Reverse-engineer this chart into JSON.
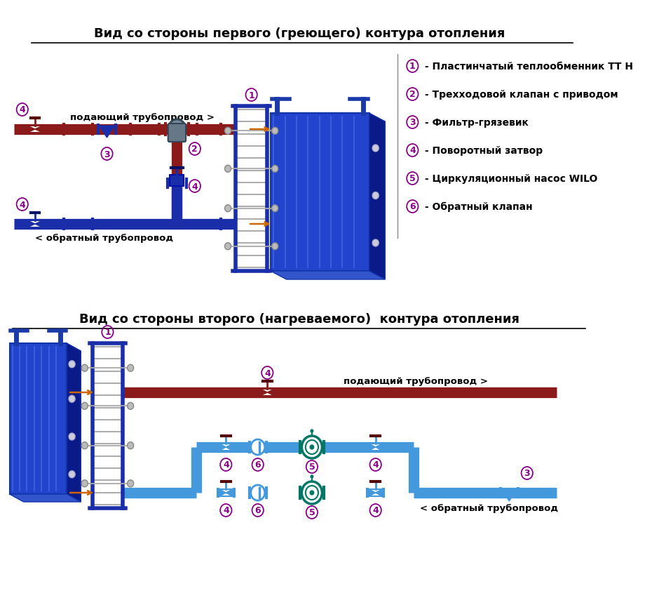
{
  "title1": "Вид со стороны первого (греющего) контура отопления",
  "title2": "Вид со стороны второго (нагреваемого)  контура отопления",
  "legend": [
    {
      "num": "1",
      "text": " - Пластинчатый теплообменник ТТ Н"
    },
    {
      "num": "2",
      "text": " - Трехходовой клапан с приводом"
    },
    {
      "num": "3",
      "text": " - Фильтр-грязевик"
    },
    {
      "num": "4",
      "text": " - Поворотный затвор"
    },
    {
      "num": "5",
      "text": " - Циркуляционный насос WILO"
    },
    {
      "num": "6",
      "text": " - Обратный клапан"
    }
  ],
  "label_supply1": "подающий трубопровод >",
  "label_return1": "< обратный трубопровод",
  "label_supply2": "подающий трубопровод >",
  "label_return2": "< обратный трубопровод",
  "bg_color": "#ffffff",
  "pipe_red": "#8B1A1A",
  "pipe_blue_dark": "#1a2eaa",
  "pipe_blue_light": "#4499dd",
  "circle_color": "#8B008B",
  "text_color": "#000000",
  "title_color": "#000000",
  "orange_arrow": "#cc6600"
}
